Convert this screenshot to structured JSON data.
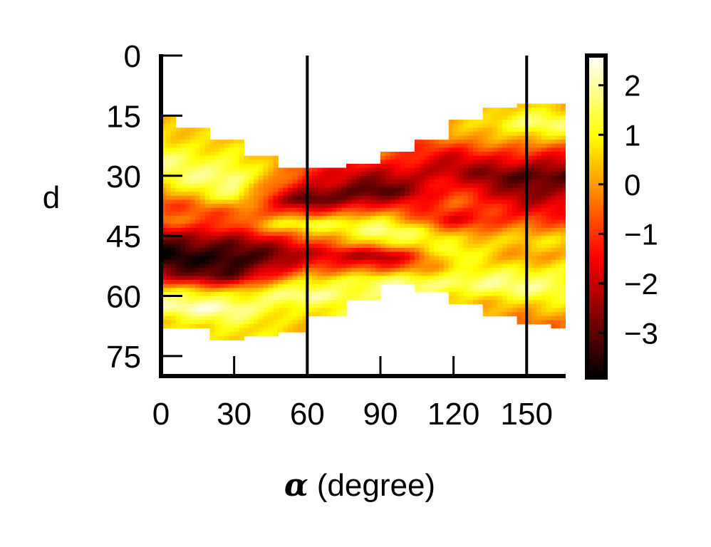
{
  "chart_data": {
    "type": "heatmap",
    "xlabel_symbol": "α",
    "xlabel_text": "(degree)",
    "ylabel": "d",
    "xlim": [
      0,
      166
    ],
    "ylim": [
      0,
      80
    ],
    "y_inverted": true,
    "x_ticks": [
      0,
      30,
      60,
      90,
      120,
      150
    ],
    "x_tick_labels": [
      "0",
      "30",
      "60",
      "90",
      "120",
      "150"
    ],
    "y_ticks": [
      0,
      15,
      30,
      45,
      60,
      75
    ],
    "y_tick_labels": [
      "0",
      "15",
      "30",
      "45",
      "60",
      "75"
    ],
    "vertical_lines_x": [
      60,
      150
    ],
    "colorbar": {
      "colormap": "hot",
      "range": [
        -3.9,
        2.6
      ],
      "ticks": [
        2,
        1,
        0,
        -1,
        -2,
        -3
      ],
      "tick_labels": [
        "2",
        "1",
        "0",
        "−1",
        "−2",
        "−3"
      ]
    },
    "cell_size": {
      "x": 2,
      "y": 1
    },
    "extent": [
      {
        "x": [
          0,
          6
        ],
        "d": [
          15,
          68
        ]
      },
      {
        "x": [
          6,
          20
        ],
        "d": [
          18,
          68
        ]
      },
      {
        "x": [
          20,
          34
        ],
        "d": [
          21,
          71
        ]
      },
      {
        "x": [
          34,
          48
        ],
        "d": [
          25,
          70
        ]
      },
      {
        "x": [
          48,
          60
        ],
        "d": [
          28,
          69
        ]
      },
      {
        "x": [
          60,
          76
        ],
        "d": [
          28,
          65
        ]
      },
      {
        "x": [
          76,
          90
        ],
        "d": [
          27,
          61
        ]
      },
      {
        "x": [
          90,
          104
        ],
        "d": [
          24,
          57
        ]
      },
      {
        "x": [
          104,
          118
        ],
        "d": [
          21,
          59
        ]
      },
      {
        "x": [
          118,
          132
        ],
        "d": [
          16,
          62
        ]
      },
      {
        "x": [
          132,
          146
        ],
        "d": [
          13,
          65
        ]
      },
      {
        "x": [
          146,
          160
        ],
        "d": [
          12,
          67
        ]
      },
      {
        "x": [
          160,
          166
        ],
        "d": [
          12,
          68
        ]
      }
    ],
    "value_bands": [
      {
        "x": 0,
        "d": [
          16,
          20,
          26,
          31,
          37,
          41,
          45,
          50,
          55,
          59,
          63,
          66
        ],
        "v": [
          0.3,
          0.8,
          1.6,
          1.2,
          -0.9,
          -0.2,
          -2.8,
          -3.8,
          -2.2,
          0.9,
          2.2,
          0.8
        ]
      },
      {
        "x": 30,
        "d": [
          21,
          25,
          30,
          35,
          39,
          43,
          47,
          51,
          55,
          59,
          63,
          68
        ],
        "v": [
          0.3,
          1.0,
          2.0,
          1.3,
          -0.7,
          -0.9,
          -2.9,
          -3.8,
          -3.1,
          0.7,
          2.2,
          0.7
        ]
      },
      {
        "x": 60,
        "d": [
          28,
          32,
          36,
          39,
          42,
          45,
          49,
          52,
          56,
          60,
          63
        ],
        "v": [
          -1.1,
          -1.8,
          -3.4,
          -1.0,
          1.6,
          -0.5,
          -2.1,
          -1.2,
          0.9,
          2.0,
          0.6
        ]
      },
      {
        "x": 90,
        "d": [
          25,
          29,
          34,
          38,
          41,
          44,
          47,
          50,
          53,
          56
        ],
        "v": [
          -0.6,
          -2.0,
          -3.3,
          -1.1,
          0.8,
          2.1,
          0.8,
          -2.6,
          -1.0,
          1.5
        ]
      },
      {
        "x": 120,
        "d": [
          17,
          21,
          25,
          29,
          33,
          37,
          41,
          45,
          49,
          53,
          57,
          61
        ],
        "v": [
          0.2,
          -0.4,
          -1.7,
          -2.1,
          -1.2,
          -0.6,
          -1.6,
          0.5,
          1.2,
          0.6,
          1.9,
          0.5
        ]
      },
      {
        "x": 150,
        "d": [
          13,
          17,
          21,
          26,
          30,
          34,
          38,
          42,
          46,
          50,
          54,
          58,
          62,
          67
        ],
        "v": [
          0.5,
          1.8,
          0.4,
          -1.7,
          -3.4,
          -2.6,
          -1.6,
          -0.7,
          0.6,
          0.0,
          1.3,
          1.8,
          0.5,
          -0.4
        ]
      },
      {
        "x": 166,
        "d": [
          13,
          17,
          21,
          26,
          30,
          34,
          38,
          42,
          46,
          50,
          54,
          58,
          62,
          67
        ],
        "v": [
          0.4,
          1.6,
          0.3,
          -1.8,
          -3.2,
          -2.4,
          -1.5,
          -0.6,
          0.5,
          0.1,
          1.2,
          1.7,
          0.6,
          -0.3
        ]
      }
    ]
  }
}
